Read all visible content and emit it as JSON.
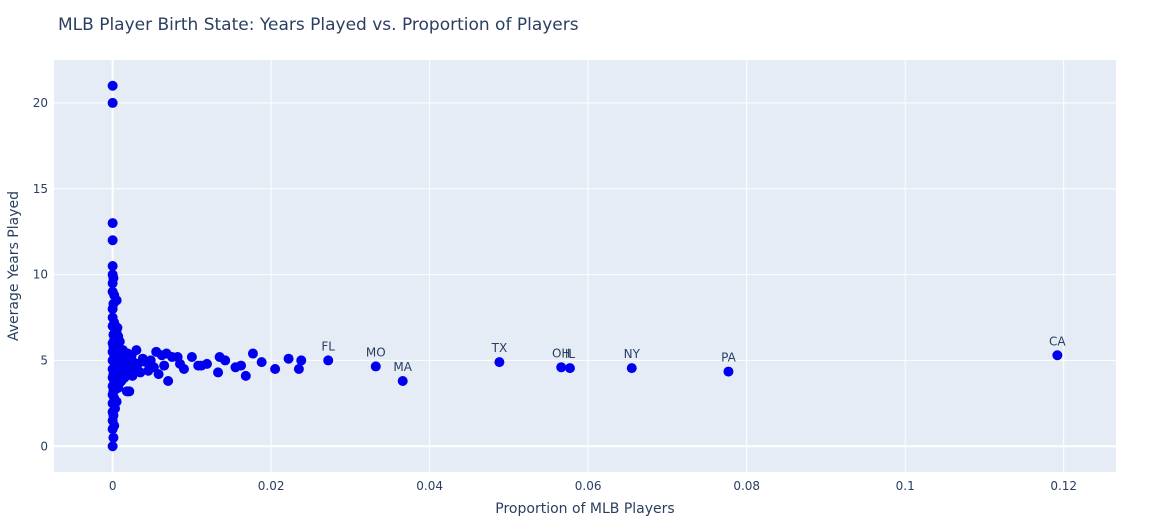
{
  "chart_data": {
    "type": "scatter",
    "title": "MLB Player Birth State: Years Played vs. Proportion of Players",
    "xlabel": "Proportion of MLB Players",
    "ylabel": "Average Years Played",
    "xlim": [
      -0.0074,
      0.1266
    ],
    "ylim": [
      -1.5,
      22.5
    ],
    "x_ticks": [
      0,
      0.02,
      0.04,
      0.06,
      0.08,
      0.1,
      0.12
    ],
    "x_tick_labels": [
      "0",
      "0.02",
      "0.04",
      "0.06",
      "0.08",
      "0.1",
      "0.12"
    ],
    "y_ticks": [
      0,
      5,
      10,
      15,
      20
    ],
    "y_tick_labels": [
      "0",
      "5",
      "10",
      "15",
      "20"
    ],
    "grid": true,
    "marker_color": "#0000ee",
    "background_color": "#e5ecf6",
    "labeled_points": [
      {
        "label": "FL",
        "x": 0.0272,
        "y": 5.0
      },
      {
        "label": "MO",
        "x": 0.0332,
        "y": 4.65
      },
      {
        "label": "MA",
        "x": 0.0366,
        "y": 3.8
      },
      {
        "label": "TX",
        "x": 0.0488,
        "y": 4.9
      },
      {
        "label": "OH",
        "x": 0.0566,
        "y": 4.6
      },
      {
        "label": "IL",
        "x": 0.0577,
        "y": 4.55
      },
      {
        "label": "NY",
        "x": 0.0655,
        "y": 4.55
      },
      {
        "label": "PA",
        "x": 0.0777,
        "y": 4.35
      },
      {
        "label": "CA",
        "x": 0.1192,
        "y": 5.3
      }
    ],
    "points": [
      {
        "x": 0.0,
        "y": 21.0
      },
      {
        "x": 0.0,
        "y": 20.0
      },
      {
        "x": 0.0,
        "y": 13.0
      },
      {
        "x": 0.0,
        "y": 12.0
      },
      {
        "x": 0.0,
        "y": 10.5
      },
      {
        "x": 0.0,
        "y": 10.0
      },
      {
        "x": 0.0,
        "y": 9.5
      },
      {
        "x": 0.0,
        "y": 9.0
      },
      {
        "x": 0.0,
        "y": 8.0
      },
      {
        "x": 0.0,
        "y": 7.5
      },
      {
        "x": 0.0,
        "y": 7.0
      },
      {
        "x": 0.0,
        "y": 6.0
      },
      {
        "x": 0.0,
        "y": 5.5
      },
      {
        "x": 0.0,
        "y": 5.0
      },
      {
        "x": 0.0,
        "y": 4.5
      },
      {
        "x": 0.0,
        "y": 4.0
      },
      {
        "x": 0.0,
        "y": 3.5
      },
      {
        "x": 0.0,
        "y": 3.0
      },
      {
        "x": 0.0,
        "y": 2.5
      },
      {
        "x": 0.0,
        "y": 2.0
      },
      {
        "x": 0.0,
        "y": 1.5
      },
      {
        "x": 0.0,
        "y": 1.0
      },
      {
        "x": 0.0,
        "y": 0.0
      },
      {
        "x": 0.0001,
        "y": 9.8
      },
      {
        "x": 0.0001,
        "y": 8.3
      },
      {
        "x": 0.0001,
        "y": 6.5
      },
      {
        "x": 0.0001,
        "y": 5.8
      },
      {
        "x": 0.0001,
        "y": 4.2
      },
      {
        "x": 0.0001,
        "y": 3.2
      },
      {
        "x": 0.0001,
        "y": 1.8
      },
      {
        "x": 0.0001,
        "y": 0.5
      },
      {
        "x": 0.0002,
        "y": 8.8
      },
      {
        "x": 0.0002,
        "y": 7.2
      },
      {
        "x": 0.0002,
        "y": 6.2
      },
      {
        "x": 0.0002,
        "y": 5.2
      },
      {
        "x": 0.0002,
        "y": 3.8
      },
      {
        "x": 0.0002,
        "y": 2.8
      },
      {
        "x": 0.0002,
        "y": 1.2
      },
      {
        "x": 0.0003,
        "y": 6.8
      },
      {
        "x": 0.0003,
        "y": 4.8
      },
      {
        "x": 0.0003,
        "y": 4.1
      },
      {
        "x": 0.0003,
        "y": 3.3
      },
      {
        "x": 0.0003,
        "y": 2.2
      },
      {
        "x": 0.0004,
        "y": 5.9
      },
      {
        "x": 0.0004,
        "y": 4.6
      },
      {
        "x": 0.0004,
        "y": 3.6
      },
      {
        "x": 0.0005,
        "y": 8.5
      },
      {
        "x": 0.0005,
        "y": 6.6
      },
      {
        "x": 0.0005,
        "y": 5.4
      },
      {
        "x": 0.0005,
        "y": 4.4
      },
      {
        "x": 0.0005,
        "y": 2.6
      },
      {
        "x": 0.0006,
        "y": 6.9
      },
      {
        "x": 0.0006,
        "y": 5.1
      },
      {
        "x": 0.0006,
        "y": 3.9
      },
      {
        "x": 0.0007,
        "y": 6.4
      },
      {
        "x": 0.0007,
        "y": 4.7
      },
      {
        "x": 0.0007,
        "y": 3.4
      },
      {
        "x": 0.0008,
        "y": 5.7
      },
      {
        "x": 0.0008,
        "y": 4.3
      },
      {
        "x": 0.0009,
        "y": 6.1
      },
      {
        "x": 0.0009,
        "y": 5.0
      },
      {
        "x": 0.0009,
        "y": 3.7
      },
      {
        "x": 0.001,
        "y": 5.5
      },
      {
        "x": 0.001,
        "y": 4.5
      },
      {
        "x": 0.0011,
        "y": 4.9
      },
      {
        "x": 0.0011,
        "y": 3.8
      },
      {
        "x": 0.0012,
        "y": 5.3
      },
      {
        "x": 0.0012,
        "y": 4.2
      },
      {
        "x": 0.0013,
        "y": 5.6
      },
      {
        "x": 0.0014,
        "y": 4.8
      },
      {
        "x": 0.0015,
        "y": 4.0
      },
      {
        "x": 0.0016,
        "y": 5.2
      },
      {
        "x": 0.0017,
        "y": 4.4
      },
      {
        "x": 0.0018,
        "y": 3.2
      },
      {
        "x": 0.0019,
        "y": 5.4
      },
      {
        "x": 0.002,
        "y": 4.6
      },
      {
        "x": 0.0021,
        "y": 3.2
      },
      {
        "x": 0.0022,
        "y": 5.0
      },
      {
        "x": 0.0023,
        "y": 4.7
      },
      {
        "x": 0.0024,
        "y": 5.3
      },
      {
        "x": 0.0025,
        "y": 4.1
      },
      {
        "x": 0.0026,
        "y": 4.9
      },
      {
        "x": 0.0028,
        "y": 4.5
      },
      {
        "x": 0.003,
        "y": 5.6
      },
      {
        "x": 0.0032,
        "y": 4.8
      },
      {
        "x": 0.0035,
        "y": 4.3
      },
      {
        "x": 0.0038,
        "y": 5.1
      },
      {
        "x": 0.0042,
        "y": 4.9
      },
      {
        "x": 0.0045,
        "y": 4.4
      },
      {
        "x": 0.0048,
        "y": 5.0
      },
      {
        "x": 0.0052,
        "y": 4.6
      },
      {
        "x": 0.0055,
        "y": 5.5
      },
      {
        "x": 0.0058,
        "y": 4.2
      },
      {
        "x": 0.0062,
        "y": 5.3
      },
      {
        "x": 0.0065,
        "y": 4.7
      },
      {
        "x": 0.0068,
        "y": 5.4
      },
      {
        "x": 0.007,
        "y": 3.8
      },
      {
        "x": 0.0075,
        "y": 5.2
      },
      {
        "x": 0.0082,
        "y": 5.2
      },
      {
        "x": 0.0085,
        "y": 4.8
      },
      {
        "x": 0.009,
        "y": 4.5
      },
      {
        "x": 0.01,
        "y": 5.2
      },
      {
        "x": 0.0108,
        "y": 4.7
      },
      {
        "x": 0.0112,
        "y": 4.7
      },
      {
        "x": 0.0119,
        "y": 4.8
      },
      {
        "x": 0.0133,
        "y": 4.3
      },
      {
        "x": 0.0135,
        "y": 5.2
      },
      {
        "x": 0.0142,
        "y": 5.0
      },
      {
        "x": 0.0155,
        "y": 4.6
      },
      {
        "x": 0.0162,
        "y": 4.7
      },
      {
        "x": 0.0168,
        "y": 4.1
      },
      {
        "x": 0.0177,
        "y": 5.4
      },
      {
        "x": 0.0188,
        "y": 4.9
      },
      {
        "x": 0.0205,
        "y": 4.5
      },
      {
        "x": 0.0222,
        "y": 5.1
      },
      {
        "x": 0.0235,
        "y": 4.5
      },
      {
        "x": 0.0238,
        "y": 5.0
      },
      {
        "x": 0.0272,
        "y": 5.0
      },
      {
        "x": 0.0332,
        "y": 4.65
      },
      {
        "x": 0.0366,
        "y": 3.8
      },
      {
        "x": 0.0488,
        "y": 4.9
      },
      {
        "x": 0.0566,
        "y": 4.6
      },
      {
        "x": 0.0577,
        "y": 4.55
      },
      {
        "x": 0.0655,
        "y": 4.55
      },
      {
        "x": 0.0777,
        "y": 4.35
      },
      {
        "x": 0.1192,
        "y": 5.3
      }
    ]
  }
}
